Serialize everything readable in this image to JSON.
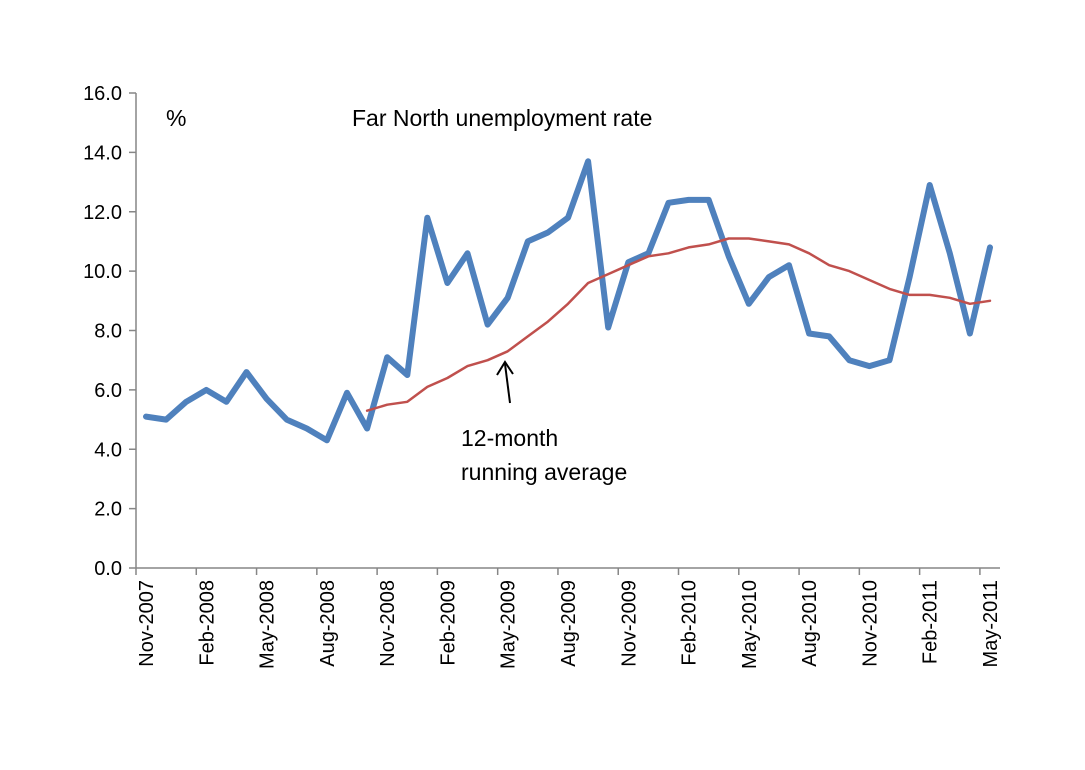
{
  "chart_data": {
    "type": "line",
    "title": "Far North unemployment rate",
    "unit_label": "%",
    "xlabel": "",
    "ylabel": "",
    "ylim": [
      0,
      16
    ],
    "yticks": [
      "0.0",
      "2.0",
      "4.0",
      "6.0",
      "8.0",
      "10.0",
      "12.0",
      "14.0",
      "16.0"
    ],
    "grid": false,
    "x": [
      "Nov-2007",
      "Dec-2007",
      "Jan-2008",
      "Feb-2008",
      "Mar-2008",
      "Apr-2008",
      "May-2008",
      "Jun-2008",
      "Jul-2008",
      "Aug-2008",
      "Sep-2008",
      "Oct-2008",
      "Nov-2008",
      "Dec-2008",
      "Jan-2009",
      "Feb-2009",
      "Mar-2009",
      "Apr-2009",
      "May-2009",
      "Jun-2009",
      "Jul-2009",
      "Aug-2009",
      "Sep-2009",
      "Oct-2009",
      "Nov-2009",
      "Dec-2009",
      "Jan-2010",
      "Feb-2010",
      "Mar-2010",
      "Apr-2010",
      "May-2010",
      "Jun-2010",
      "Jul-2010",
      "Aug-2010",
      "Sep-2010",
      "Oct-2010",
      "Nov-2010",
      "Dec-2010",
      "Jan-2011",
      "Feb-2011",
      "Mar-2011",
      "Apr-2011",
      "May-2011"
    ],
    "xtick_labels": [
      "Nov-2007",
      "Feb-2008",
      "May-2008",
      "Aug-2008",
      "Nov-2008",
      "Feb-2009",
      "May-2009",
      "Aug-2009",
      "Nov-2009",
      "Feb-2010",
      "May-2010",
      "Aug-2010",
      "Nov-2010",
      "Feb-2011",
      "May-2011"
    ],
    "series": [
      {
        "name": "Far North unemployment rate",
        "color": "#4f81bd",
        "values": [
          5.1,
          5.0,
          5.6,
          6.0,
          5.6,
          6.6,
          5.7,
          5.0,
          4.7,
          4.3,
          5.9,
          4.7,
          7.1,
          6.5,
          11.8,
          9.6,
          10.6,
          8.2,
          9.1,
          11.0,
          11.3,
          11.8,
          13.7,
          8.1,
          10.3,
          10.6,
          12.3,
          12.4,
          12.4,
          10.5,
          8.9,
          9.8,
          10.2,
          7.9,
          7.8,
          7.0,
          6.8,
          7.0,
          9.8,
          12.9,
          10.6,
          7.9,
          10.8
        ]
      },
      {
        "name": "12-month running average",
        "color": "#c0504d",
        "values": [
          null,
          null,
          null,
          null,
          null,
          null,
          null,
          null,
          null,
          null,
          null,
          5.3,
          5.5,
          5.6,
          6.1,
          6.4,
          6.8,
          7.0,
          7.3,
          7.8,
          8.3,
          8.9,
          9.6,
          9.9,
          10.2,
          10.5,
          10.6,
          10.8,
          10.9,
          11.1,
          11.1,
          11.0,
          10.9,
          10.6,
          10.2,
          10.0,
          9.7,
          9.4,
          9.2,
          9.2,
          9.1,
          8.9,
          9.0
        ]
      }
    ],
    "annotations": [
      {
        "lines": [
          "12-month",
          "running average"
        ],
        "points_to_series": "12-month running average"
      }
    ]
  }
}
